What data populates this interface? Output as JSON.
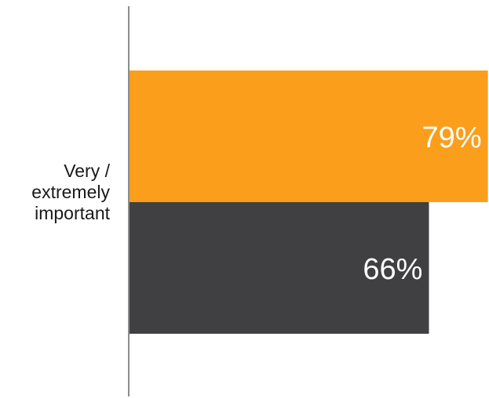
{
  "chart_data": {
    "type": "bar",
    "orientation": "horizontal",
    "categories": [
      "Very / extremely important"
    ],
    "series": [
      {
        "values": [
          79
        ],
        "color": "#FB9E1B"
      },
      {
        "values": [
          66
        ],
        "color": "#404042"
      }
    ],
    "data_labels": [
      "79%",
      "66%"
    ],
    "xlim": [
      0,
      100
    ],
    "grid": false,
    "legend": "none"
  }
}
